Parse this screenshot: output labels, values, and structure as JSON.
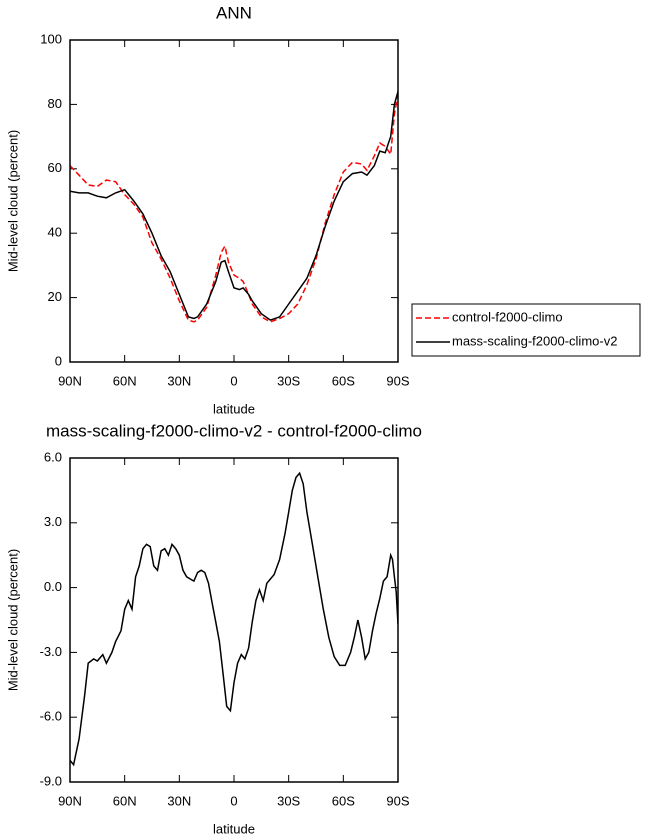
{
  "chart_data": [
    {
      "type": "line",
      "title": "ANN",
      "xlabel": "latitude",
      "ylabel": "Mid-level cloud (percent)",
      "x": [
        90,
        85,
        80,
        75,
        70,
        65,
        60,
        55,
        50,
        45,
        40,
        35,
        30,
        25,
        22,
        20,
        15,
        10,
        7,
        5,
        3,
        0,
        -3,
        -5,
        -8,
        -10,
        -15,
        -20,
        -25,
        -30,
        -35,
        -40,
        -45,
        -50,
        -55,
        -60,
        -65,
        -70,
        -73,
        -77,
        -80,
        -83,
        -86,
        -88,
        -90
      ],
      "series": [
        {
          "name": "control-f2000-climo",
          "color": "#ff0000",
          "line_style": "dashed",
          "values": [
            61,
            58,
            55,
            54.5,
            56.5,
            56,
            52,
            49,
            45,
            37,
            32,
            26,
            19,
            13,
            12.5,
            13,
            17,
            27,
            34,
            36,
            31,
            27,
            26,
            25,
            21,
            18,
            14,
            12.5,
            13.5,
            15,
            18,
            24,
            32,
            43,
            52,
            59,
            62,
            61.5,
            59.5,
            64,
            68,
            67,
            64.5,
            77,
            83
          ]
        },
        {
          "name": "mass-scaling-f2000-climo-v2",
          "color": "#000000",
          "line_style": "solid",
          "values": [
            53,
            52.5,
            52.5,
            51.5,
            51,
            52.5,
            53.5,
            50,
            46,
            40,
            33,
            28,
            21,
            14,
            13.5,
            14,
            18,
            25,
            31,
            31.5,
            28,
            23,
            22.5,
            23,
            21,
            19,
            15,
            13,
            14,
            18,
            22,
            26,
            33,
            42,
            50,
            56,
            58.5,
            59,
            58,
            61,
            65.5,
            65,
            70,
            80,
            84
          ]
        }
      ],
      "xlim": [
        90,
        -90
      ],
      "xticks": [
        {
          "value": 90,
          "label": "90N"
        },
        {
          "value": 60,
          "label": "60N"
        },
        {
          "value": 30,
          "label": "30N"
        },
        0,
        {
          "value": -30,
          "label": "30S"
        },
        {
          "value": -60,
          "label": "60S"
        },
        {
          "value": -90,
          "label": "90S"
        }
      ],
      "ylim": [
        0,
        100
      ],
      "yticks": [
        0,
        20,
        40,
        60,
        80,
        100
      ],
      "legend": "right"
    },
    {
      "type": "line",
      "title": "mass-scaling-f2000-climo-v2 - control-f2000-climo",
      "xlabel": "latitude",
      "ylabel": "Mid-level cloud (percent)",
      "x": [
        90,
        88,
        85,
        82,
        80,
        77,
        75,
        72,
        70,
        67,
        65,
        62,
        60,
        58,
        56,
        54,
        52,
        50,
        48,
        46,
        44,
        42,
        40,
        38,
        36,
        34,
        32,
        30,
        28,
        26,
        24,
        22,
        20,
        18,
        16,
        14,
        12,
        10,
        8,
        6,
        4,
        2,
        0,
        -2,
        -4,
        -6,
        -8,
        -10,
        -12,
        -14,
        -16,
        -18,
        -20,
        -22,
        -25,
        -28,
        -30,
        -32,
        -34,
        -36,
        -38,
        -40,
        -43,
        -46,
        -49,
        -52,
        -55,
        -58,
        -61,
        -64,
        -66,
        -68,
        -70,
        -72,
        -74,
        -76,
        -78,
        -80,
        -82,
        -84,
        -86,
        -87,
        -88,
        -89,
        -90
      ],
      "color": "#000000",
      "values": [
        -8,
        -8.2,
        -7,
        -5,
        -3.5,
        -3.3,
        -3.4,
        -3.1,
        -3.5,
        -3,
        -2.5,
        -2,
        -1,
        -0.6,
        -1,
        0.5,
        1,
        1.8,
        2,
        1.9,
        1,
        0.8,
        1.7,
        1.8,
        1.5,
        2,
        1.8,
        1.5,
        0.8,
        0.5,
        0.4,
        0.3,
        0.7,
        0.8,
        0.7,
        0.2,
        -0.7,
        -1.6,
        -2.5,
        -4,
        -5.5,
        -5.7,
        -4.4,
        -3.5,
        -3.1,
        -3.3,
        -2.8,
        -1.6,
        -0.6,
        -0.1,
        -0.6,
        0.2,
        0.4,
        0.6,
        1.3,
        2.5,
        3.5,
        4.5,
        5.1,
        5.3,
        4.8,
        3.5,
        2,
        0.5,
        -1,
        -2.3,
        -3.2,
        -3.6,
        -3.6,
        -3,
        -2.3,
        -1.5,
        -2.3,
        -3.3,
        -3,
        -2,
        -1.2,
        -0.5,
        0.3,
        0.5,
        1.5,
        1.3,
        0.5,
        -0.2,
        -1.7
      ],
      "xlim": [
        90,
        -90
      ],
      "xticks": [
        {
          "value": 90,
          "label": "90N"
        },
        {
          "value": 60,
          "label": "60N"
        },
        {
          "value": 30,
          "label": "30N"
        },
        0,
        {
          "value": -30,
          "label": "30S"
        },
        {
          "value": -60,
          "label": "60S"
        },
        {
          "value": -90,
          "label": "90S"
        }
      ],
      "ylim": [
        -9,
        6
      ],
      "yticks": [
        {
          "value": 6,
          "label": "6.0"
        },
        {
          "value": 3,
          "label": "3.0"
        },
        {
          "value": 0,
          "label": "0.0"
        },
        {
          "value": -3,
          "label": "-3.0"
        },
        {
          "value": -6,
          "label": "-6.0"
        },
        {
          "value": -9,
          "label": "-9.0"
        }
      ]
    }
  ]
}
